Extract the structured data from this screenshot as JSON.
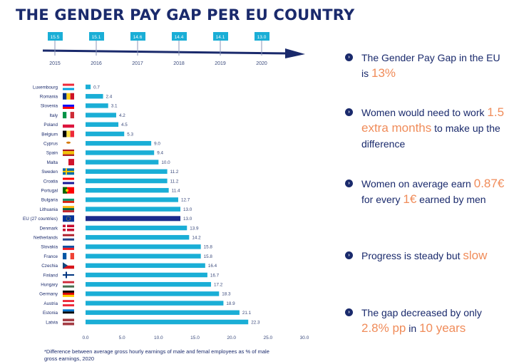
{
  "title": "THE GENDER PAY GAP PER EU COUNTRY",
  "timeline": {
    "years": [
      "2015",
      "2016",
      "2017",
      "2018",
      "2019",
      "2020"
    ],
    "values": [
      "15.5",
      "15.1",
      "14.6",
      "14.4",
      "14.1",
      "13.0"
    ]
  },
  "key_points": [
    {
      "segments": [
        {
          "text": "The Gender Pay Gap in the EU is ",
          "hl": false
        },
        {
          "text": "13%",
          "hl": true
        }
      ]
    },
    {
      "segments": [
        {
          "text": "Women would need to work ",
          "hl": false
        },
        {
          "text": "1.5 extra months",
          "hl": true
        },
        {
          "text": " to make up the difference",
          "hl": false
        }
      ]
    },
    {
      "segments": [
        {
          "text": "Women on average earn ",
          "hl": false
        },
        {
          "text": "0.87€",
          "hl": true
        },
        {
          "text": " for every ",
          "hl": false
        },
        {
          "text": "1€",
          "hl": true
        },
        {
          "text": " earned by men",
          "hl": false
        }
      ]
    },
    {
      "segments": [
        {
          "text": "Progress is steady but ",
          "hl": false
        },
        {
          "text": "slow",
          "hl": true
        }
      ]
    },
    {
      "segments": [
        {
          "text": "The gap decreased by only ",
          "hl": false
        },
        {
          "text": "2.8% pp",
          "hl": true
        },
        {
          "text": " in ",
          "hl": false
        },
        {
          "text": "10 years",
          "hl": true
        }
      ]
    }
  ],
  "footnote": "*Difference between average gross hourly earnings of male and femal employees as % of male gross earnings, 2020",
  "colors": {
    "bar": "#1aaed6",
    "bar_eu": "#1a2a8c",
    "navy": "#1a2a6c",
    "highlight": "#f08c5a",
    "year_box": "#1aaed6"
  },
  "chart_data": {
    "type": "bar",
    "orientation": "horizontal",
    "categories": [
      "Luxembourg",
      "Romania",
      "Slovenia",
      "Italy",
      "Poland",
      "Belgium",
      "Cyprus",
      "Spain",
      "Malta",
      "Sweden",
      "Croatia",
      "Portugal",
      "Bulgaria",
      "Lithuania",
      "EU (27 countries)",
      "Denmark",
      "Netherlands",
      "Slovakia",
      "France",
      "Czechia",
      "Finland",
      "Hungary",
      "Germany",
      "Austria",
      "Estonia",
      "Latvia"
    ],
    "values": [
      0.7,
      2.4,
      3.1,
      4.2,
      4.5,
      5.3,
      9.0,
      9.4,
      10.0,
      11.2,
      11.2,
      11.4,
      12.7,
      13.0,
      13.0,
      13.9,
      14.2,
      15.8,
      15.8,
      16.4,
      16.7,
      17.2,
      18.3,
      18.9,
      21.1,
      22.3
    ],
    "value_labels": [
      "0.7",
      "2.4",
      "3.1",
      "4.2",
      "4.5",
      "5.3",
      "9.0",
      "9.4",
      "10.0",
      "11.2",
      "11.2",
      "11.4",
      "12.7",
      "13.0",
      "13.0",
      "13.9",
      "14.2",
      "15.8",
      "15.8",
      "16.4",
      "16.7",
      "17.2",
      "18.3",
      "18.9",
      "21.1",
      "22.3"
    ],
    "highlight_category": "EU (27 countries)",
    "xlim": [
      0,
      30
    ],
    "xticks": [
      "0.0",
      "5.0",
      "10.0",
      "15.0",
      "20.0",
      "25.0",
      "30.0"
    ],
    "grid": false,
    "legend": "none"
  }
}
